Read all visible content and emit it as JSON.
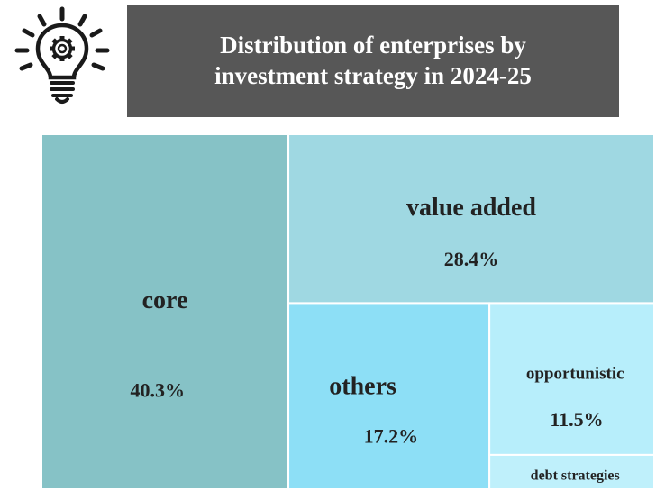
{
  "header": {
    "title": "Distribution of enterprises by investment strategy in 2024-25",
    "icon": "lightbulb-gear-icon"
  },
  "chart_data": {
    "type": "treemap",
    "title": "Distribution of enterprises by investment strategy in 2024-25",
    "unit": "%",
    "items": [
      {
        "name": "core",
        "value": 40.3,
        "value_label": "40.3%",
        "color": "#86c2c6"
      },
      {
        "name": "value added",
        "value": 28.4,
        "value_label": "28.4%",
        "color": "#9fd8e2"
      },
      {
        "name": "others",
        "value": 17.2,
        "value_label": "17.2%",
        "color": "#8ddff6"
      },
      {
        "name": "opportunistic",
        "value": 11.5,
        "value_label": "11.5%",
        "color": "#b7eefb"
      },
      {
        "name": "debt strategies",
        "value": 2.6,
        "value_label": "",
        "color": "#bff0fb"
      }
    ]
  }
}
